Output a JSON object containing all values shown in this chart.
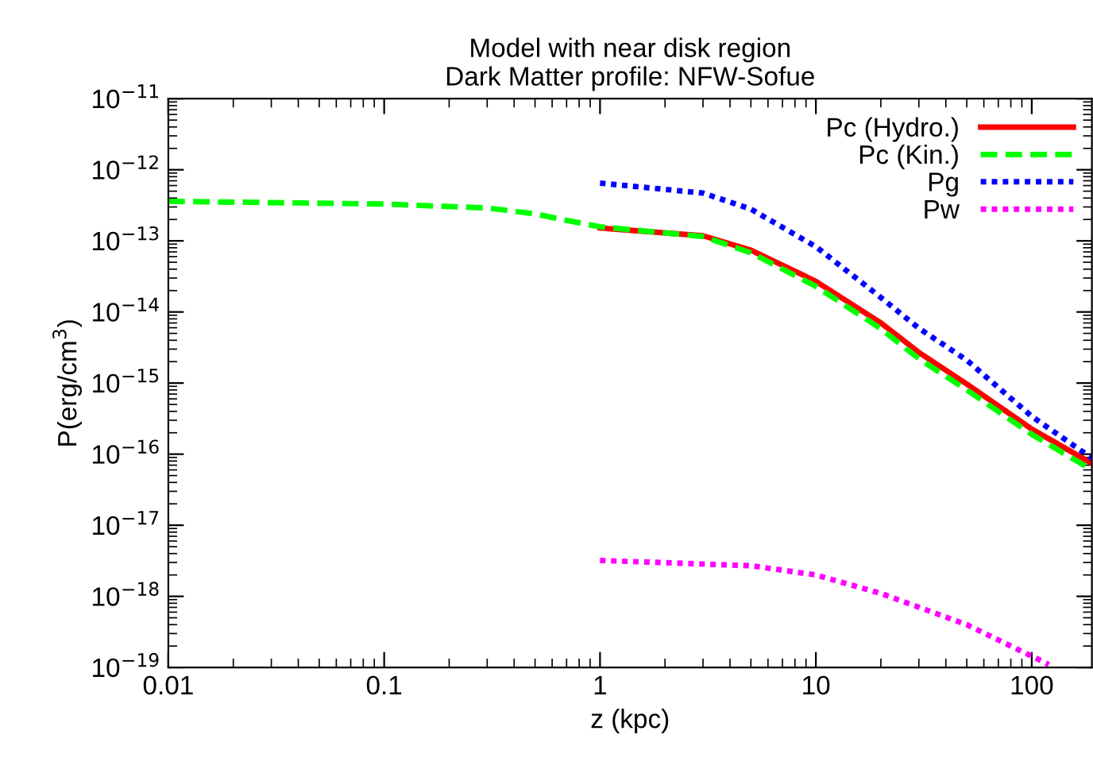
{
  "chart_data": {
    "type": "line",
    "title": "Model with near disk region\nDark Matter profile: NFW-Sofue",
    "xlabel": "z (kpc)",
    "ylabel": "P(erg/cm$^{3}$)",
    "log": "xy",
    "grid": false,
    "legend": "top right",
    "xlim": [
      0.01,
      190
    ],
    "xticks": [
      0.01,
      0.1,
      1,
      10,
      100
    ],
    "ylim": [
      1e-19,
      1e-11
    ],
    "yticks": [
      {
        "value": 1e-19,
        "label": "10$^{−19}$"
      },
      {
        "value": 1e-18,
        "label": "10$^{−18}$"
      },
      {
        "value": 1e-17,
        "label": "10$^{−17}$"
      },
      {
        "value": 1e-16,
        "label": "10$^{−16}$"
      },
      {
        "value": 1e-15,
        "label": "10$^{−15}$"
      },
      {
        "value": 1e-14,
        "label": "10$^{−14}$"
      },
      {
        "value": 1e-13,
        "label": "10$^{−13}$"
      },
      {
        "value": 1e-12,
        "label": "10$^{−12}$"
      },
      {
        "value": 1e-11,
        "label": "10$^{−11}$"
      }
    ],
    "series": [
      {
        "name": "Pc (Hydro.)",
        "color": "#ff0000",
        "line_style": "solid",
        "x": [
          1,
          3,
          5,
          10,
          20,
          30,
          50,
          100,
          190
        ],
        "values": [
          1.52e-13,
          1.18e-13,
          7.4e-14,
          2.7e-14,
          7e-15,
          2.7e-15,
          9.7e-16,
          2.25e-16,
          7.4e-17
        ]
      },
      {
        "name": "Pc (Kin.)",
        "color": "#00ff00",
        "line_style": "dashed",
        "x": [
          0.01,
          0.1,
          0.3,
          0.5,
          0.7,
          1,
          3,
          5,
          10,
          20,
          30,
          50,
          100,
          190
        ],
        "values": [
          3.6e-13,
          3.3e-13,
          2.9e-13,
          2.4e-13,
          1.94e-13,
          1.58e-13,
          1.15e-13,
          6.8e-14,
          2.3e-14,
          5.8e-15,
          2.2e-15,
          8e-16,
          1.9e-16,
          6e-17
        ]
      },
      {
        "name": "Pg",
        "color": "#0000ff",
        "line_style": "dotted",
        "x": [
          1,
          3,
          5,
          10,
          20,
          30,
          50,
          100,
          190
        ],
        "values": [
          6.5e-13,
          4.7e-13,
          2.8e-13,
          8.3e-14,
          1.6e-14,
          5.9e-15,
          2.1e-15,
          3.4e-16,
          8.8e-17
        ]
      },
      {
        "name": "Pw",
        "color": "#ff00ff",
        "line_style": "dotted",
        "x": [
          1,
          5,
          10,
          20,
          50,
          120
        ],
        "values": [
          3.2e-18,
          2.7e-18,
          2e-18,
          1.1e-18,
          4e-19,
          1.1e-19
        ]
      }
    ]
  }
}
